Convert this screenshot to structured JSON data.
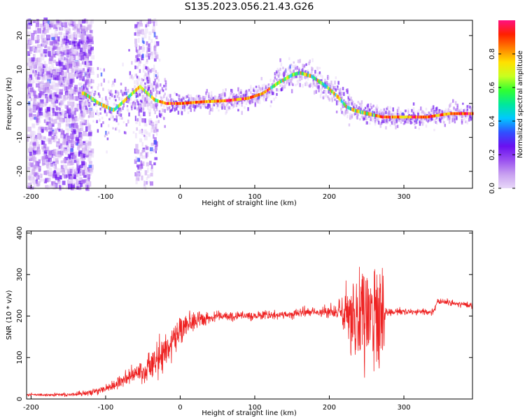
{
  "title": "S135.2023.056.21.43.G26",
  "colors": {
    "snr_line": "#ee2222",
    "axis": "#000000",
    "colormap": [
      "#e8d8f8",
      "#c8a0f0",
      "#9a50f0",
      "#6a10f0",
      "#3050ff",
      "#00c8ff",
      "#00e89a",
      "#30ff30",
      "#c8ff20",
      "#ffe000",
      "#ff8000",
      "#ff2000",
      "#ff1080"
    ]
  },
  "chart_data": [
    {
      "type": "heatmap",
      "xlabel": "Height of straight line (km)",
      "ylabel": "Frequency (Hz)",
      "xlim": [
        -206,
        392
      ],
      "ylim": [
        -25,
        24.5
      ],
      "x_ticks": [
        -200,
        -100,
        0,
        100,
        200,
        300
      ],
      "y_ticks": [
        -20,
        -10,
        0,
        10,
        20
      ],
      "colorbar": {
        "label": "Normalized spectral amplitude",
        "range": [
          0,
          1
        ],
        "ticks": [
          0.0,
          0.2,
          0.4,
          0.6,
          0.8
        ]
      },
      "ridge": {
        "x": [
          -130,
          -110,
          -90,
          -70,
          -55,
          -35,
          -20,
          0,
          30,
          60,
          90,
          110,
          130,
          150,
          160,
          175,
          195,
          210,
          222,
          232,
          250,
          270,
          300,
          330,
          360,
          392
        ],
        "y": [
          3,
          0,
          -2,
          2,
          5,
          1,
          0,
          0,
          0.5,
          0.8,
          1.5,
          3,
          6,
          8.5,
          9,
          8,
          5,
          2,
          -1,
          -2,
          -3,
          -4,
          -4,
          -4,
          -3,
          -3
        ]
      }
    },
    {
      "type": "line",
      "xlabel": "Height of straight line (km)",
      "ylabel": "SNR (10 * v/v)",
      "xlim": [
        -206,
        392
      ],
      "ylim": [
        0,
        405
      ],
      "x_ticks": [
        -200,
        -100,
        0,
        100,
        200,
        300
      ],
      "y_ticks": [
        0,
        100,
        200,
        300,
        400
      ],
      "trend": {
        "x": [
          -206,
          -150,
          -120,
          -100,
          -80,
          -60,
          -40,
          -20,
          -10,
          0,
          10,
          20,
          40,
          60,
          100,
          150,
          180,
          200,
          220,
          240,
          260,
          270,
          280,
          300,
          330,
          340,
          345,
          370,
          392
        ],
        "y": [
          10,
          10,
          15,
          25,
          45,
          60,
          80,
          110,
          140,
          165,
          180,
          190,
          195,
          200,
          200,
          205,
          210,
          210,
          210,
          210,
          210,
          210,
          210,
          210,
          210,
          210,
          235,
          230,
          225
        ]
      },
      "noise": {
        "x": [
          -206,
          -150,
          -110,
          -60,
          -30,
          -10,
          10,
          40,
          100,
          180,
          210,
          225,
          250,
          272,
          275,
          392
        ],
        "amp": [
          3,
          4,
          8,
          20,
          40,
          45,
          25,
          12,
          8,
          10,
          15,
          70,
          140,
          140,
          8,
          6
        ]
      }
    }
  ]
}
